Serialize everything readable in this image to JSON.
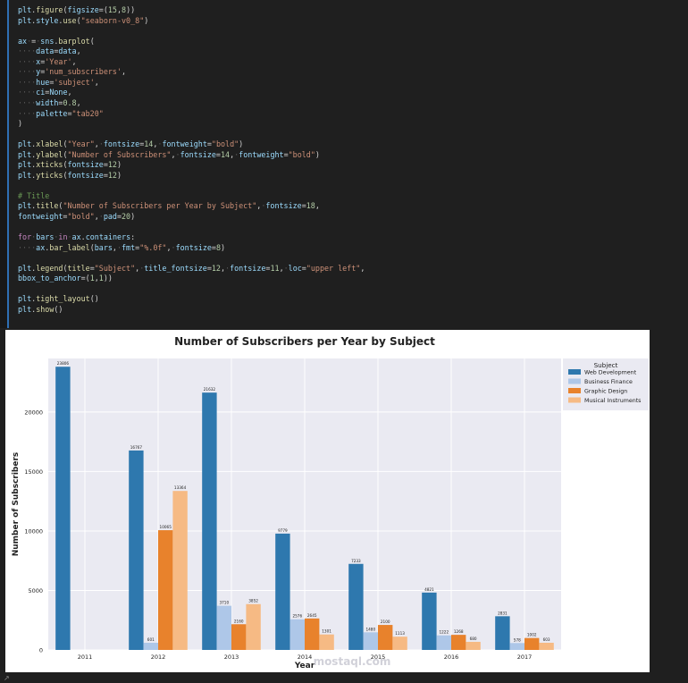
{
  "code": {
    "lines": [
      "plt.figure(figsize=(15,8))",
      "plt.style.use(\"seaborn-v0_8\")",
      "",
      "ax = sns.barplot(",
      "    data=data,",
      "    x='Year',",
      "    y='num_subscribers',",
      "    hue='subject',",
      "    ci=None,",
      "    width=0.8,",
      "    palette=\"tab20\"",
      ")",
      "",
      "plt.xlabel(\"Year\", fontsize=14, fontweight=\"bold\")",
      "plt.ylabel(\"Number of Subscribers\", fontsize=14, fontweight=\"bold\")",
      "plt.xticks(fontsize=12)",
      "plt.yticks(fontsize=12)",
      "",
      "# Title",
      "plt.title(\"Number of Subscribers per Year by Subject\", fontsize=18,",
      "fontweight=\"bold\", pad=20)",
      "",
      "for bars in ax.containers:",
      "    ax.bar_label(bars, fmt=\"%.0f\", fontsize=8)",
      "",
      "plt.legend(title=\"Subject\", title_fontsize=12, fontsize=11, loc=\"upper left\",",
      "bbox_to_anchor=(1,1))",
      "",
      "plt.tight_layout()",
      "plt.show()"
    ]
  },
  "watermark": "mostaql.com",
  "corner_glyph": "↗",
  "colors": {
    "web": "#2e78ae",
    "business": "#aec7e8",
    "graphic": "#e8822c",
    "music": "#f6ba84",
    "plot_bg": "#eaeaf2",
    "grid": "#ffffff"
  },
  "chart_data": {
    "type": "bar",
    "title": "Number of Subscribers per Year by Subject",
    "xlabel": "Year",
    "ylabel": "Number of Subscribers",
    "categories": [
      "2011",
      "2012",
      "2013",
      "2014",
      "2015",
      "2016",
      "2017"
    ],
    "ylim": [
      0,
      24500
    ],
    "yticks": [
      0,
      5000,
      10000,
      15000,
      20000
    ],
    "grid": true,
    "legend": {
      "title": "Subject",
      "placement": "upper-right-outside"
    },
    "series": [
      {
        "name": "Web Development",
        "values": [
          23806,
          16767,
          21632,
          9779,
          7233,
          4821,
          2831
        ],
        "labels": [
          "23806",
          "16767",
          "21632",
          "9779",
          "7233",
          "4821",
          "2831"
        ]
      },
      {
        "name": "Business Finance",
        "values": [
          null,
          601,
          3710,
          2576,
          1480,
          1222,
          578
        ],
        "labels": [
          "",
          "601",
          "3710",
          "2576",
          "1480",
          "1222",
          "578"
        ]
      },
      {
        "name": "Graphic Design",
        "values": [
          null,
          10065,
          2160,
          2645,
          2100,
          1268,
          1002
        ],
        "labels": [
          "",
          "10065",
          "2160",
          "2645",
          "2100",
          "1268",
          "1002"
        ]
      },
      {
        "name": "Musical Instruments",
        "values": [
          null,
          13364,
          3852,
          1301,
          1113,
          680,
          603
        ],
        "labels": [
          "",
          "13364",
          "3852",
          "1301",
          "1113",
          "680",
          "603"
        ]
      }
    ]
  }
}
